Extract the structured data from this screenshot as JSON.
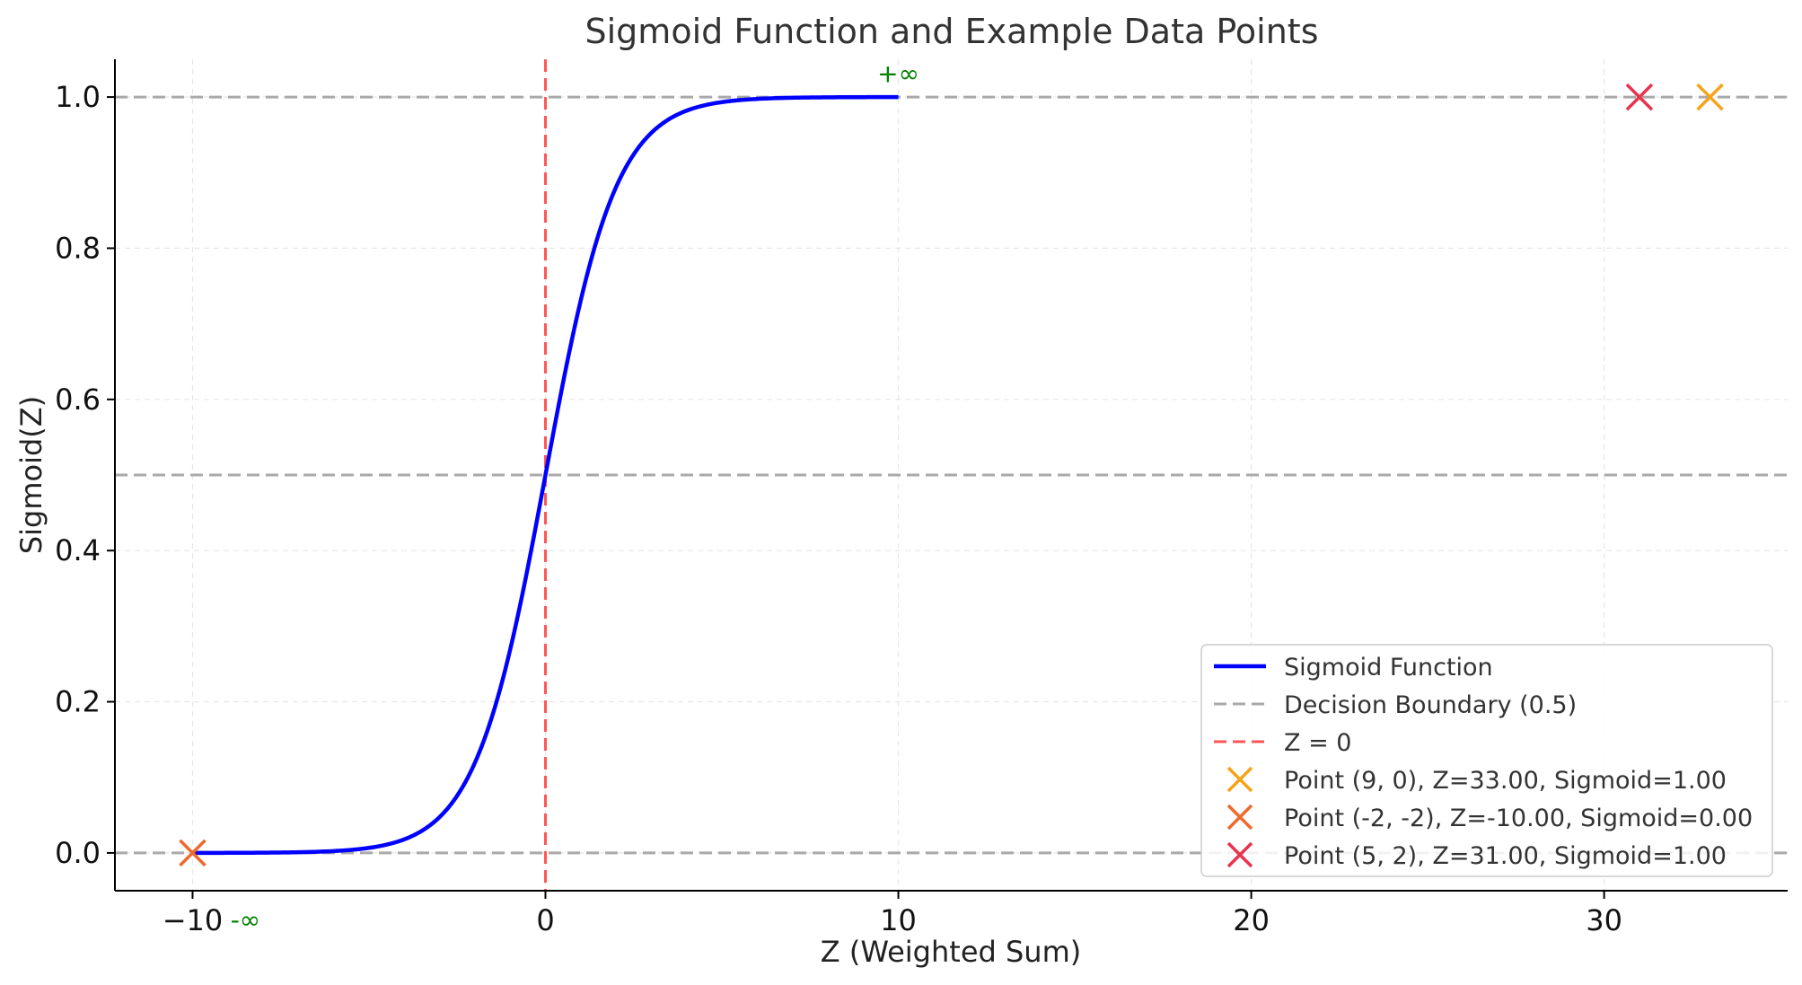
{
  "chart_data": {
    "type": "line",
    "title": "Sigmoid Function and Example Data Points",
    "xlabel": "Z (Weighted Sum)",
    "ylabel": "Sigmoid(Z)",
    "xlim": [
      -12.2,
      35.2
    ],
    "ylim": [
      -0.05,
      1.05
    ],
    "xticks": [
      -10,
      0,
      10,
      20,
      30
    ],
    "xtick_labels": [
      "−10",
      "0",
      "10",
      "20",
      "30"
    ],
    "yticks": [
      0.0,
      0.2,
      0.4,
      0.6,
      0.8,
      1.0
    ],
    "ytick_labels": [
      "0.0",
      "0.2",
      "0.4",
      "0.6",
      "0.8",
      "1.0"
    ],
    "grid": true,
    "legend_position": "bottom-right",
    "curve": {
      "name": "Sigmoid Function",
      "function": "sigmoid",
      "x_range": [
        -10,
        10
      ],
      "color": "#0000ff"
    },
    "hlines": [
      {
        "y": 0.5,
        "name": "Decision Boundary (0.5)",
        "color": "#a9a9a9"
      },
      {
        "y": 0.0,
        "name": "",
        "color": "#a9a9a9"
      },
      {
        "y": 1.0,
        "name": "",
        "color": "#a9a9a9"
      }
    ],
    "vlines": [
      {
        "x": 0,
        "name": "Z = 0",
        "color": "#ff5555"
      }
    ],
    "points": [
      {
        "name": "Point (9, 0), Z=33.00, Sigmoid=1.00",
        "x": 33,
        "y": 1.0,
        "color": "#f5a31a"
      },
      {
        "name": "Point (-2, -2), Z=-10.00, Sigmoid=0.00",
        "x": -10,
        "y": 0.0,
        "color": "#ee6a2c"
      },
      {
        "name": "Point (5, 2), Z=31.00, Sigmoid=1.00",
        "x": 31,
        "y": 1.0,
        "color": "#e8334f"
      }
    ],
    "annotations": [
      {
        "text": "+∞",
        "x": 10,
        "y": 1.02,
        "color": "#008000"
      },
      {
        "text": "-∞",
        "x": -8.5,
        "y": -0.1,
        "color": "#008000"
      }
    ],
    "legend": [
      {
        "label": "Sigmoid Function",
        "kind": "line",
        "color": "#0000ff"
      },
      {
        "label": "Decision Boundary (0.5)",
        "kind": "dashed",
        "color": "#a9a9a9"
      },
      {
        "label": "Z = 0",
        "kind": "dashed",
        "color": "#ff5555"
      },
      {
        "label": "Point (9, 0), Z=33.00, Sigmoid=1.00",
        "kind": "x",
        "color": "#f5a31a"
      },
      {
        "label": "Point (-2, -2), Z=-10.00, Sigmoid=0.00",
        "kind": "x",
        "color": "#ee6a2c"
      },
      {
        "label": "Point (5, 2), Z=31.00, Sigmoid=1.00",
        "kind": "x",
        "color": "#e8334f"
      }
    ]
  }
}
